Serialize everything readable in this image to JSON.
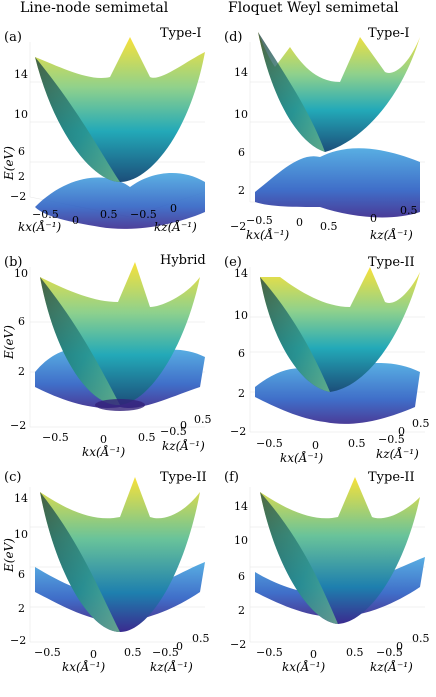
{
  "titles": {
    "left": "Line-node semimetal",
    "right": "Floquet Weyl semimetal"
  },
  "axis": {
    "energy_label": "E(eV)",
    "kx_label": "kx(Å⁻¹)",
    "kz_label": "kz(Å⁻¹)"
  },
  "panels": [
    {
      "id": "a",
      "tag": "(a)",
      "type": "Type-I",
      "e_ticks": [
        "14",
        "10",
        "6",
        "2",
        "−2"
      ],
      "k_ticks_x": [
        "−0.5",
        "0",
        "0.5"
      ],
      "k_ticks_z": [
        "−0.5",
        "0"
      ]
    },
    {
      "id": "b",
      "tag": "(b)",
      "type": "Hybrid",
      "e_ticks": [
        "10",
        "6",
        "2",
        "−2"
      ],
      "k_ticks_x": [
        "−0.5",
        "0",
        "0.5"
      ],
      "k_ticks_z": [
        "−0.5",
        "0",
        "0.5"
      ]
    },
    {
      "id": "c",
      "tag": "(c)",
      "type": "Type-II",
      "e_ticks": [
        "14",
        "10",
        "6",
        "2",
        "−2"
      ],
      "k_ticks_x": [
        "−0.5",
        "0",
        "0.5"
      ],
      "k_ticks_z": [
        "−0.5",
        "0",
        "0.5"
      ]
    },
    {
      "id": "d",
      "tag": "(d)",
      "type": "Type-I",
      "e_ticks": [
        "14",
        "10",
        "6",
        "2",
        "−2"
      ],
      "k_ticks_x": [
        "−0.5",
        "0",
        "0.5"
      ],
      "k_ticks_z": [
        "0",
        "0.5"
      ]
    },
    {
      "id": "e",
      "tag": "(e)",
      "type": "Type-II",
      "e_ticks": [
        "14",
        "10",
        "6",
        "2",
        "−2"
      ],
      "k_ticks_x": [
        "−0.5",
        "0",
        "0.5"
      ],
      "k_ticks_z": [
        "−0.5",
        "0",
        "0.5"
      ]
    },
    {
      "id": "f",
      "tag": "(f)",
      "type": "Type-II",
      "e_ticks": [
        "14",
        "10",
        "6",
        "2",
        "−2"
      ],
      "k_ticks_x": [
        "−0.5",
        "0",
        "0.5"
      ],
      "k_ticks_z": [
        "−0.5",
        "0",
        "0.5"
      ]
    }
  ]
}
